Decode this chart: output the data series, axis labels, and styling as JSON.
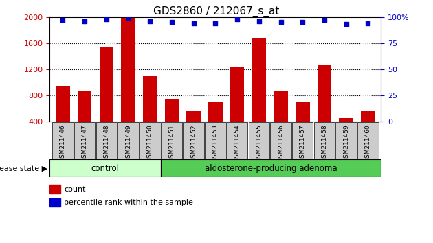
{
  "title": "GDS2860 / 212067_s_at",
  "samples": [
    "GSM211446",
    "GSM211447",
    "GSM211448",
    "GSM211449",
    "GSM211450",
    "GSM211451",
    "GSM211452",
    "GSM211453",
    "GSM211454",
    "GSM211455",
    "GSM211456",
    "GSM211457",
    "GSM211458",
    "GSM211459",
    "GSM211460"
  ],
  "counts": [
    950,
    870,
    1530,
    1990,
    1090,
    750,
    560,
    700,
    1230,
    1680,
    870,
    710,
    1270,
    450,
    560
  ],
  "percentiles": [
    97,
    96,
    98,
    99,
    96,
    95,
    94,
    94,
    98,
    96,
    95,
    95,
    97,
    93,
    94
  ],
  "control_count": 5,
  "bar_color": "#cc0000",
  "dot_color": "#0000cc",
  "ylim_left": [
    400,
    2000
  ],
  "ylim_right": [
    0,
    100
  ],
  "yticks_left": [
    400,
    800,
    1200,
    1600,
    2000
  ],
  "yticks_right": [
    0,
    25,
    50,
    75,
    100
  ],
  "grid_values": [
    800,
    1200,
    1600
  ],
  "control_color": "#ccffcc",
  "adenoma_color": "#55cc55",
  "tick_bg_color": "#cccccc",
  "ylabel_left_color": "#cc0000",
  "ylabel_right_color": "#0000cc",
  "disease_state_label": "disease state",
  "control_label": "control",
  "adenoma_label": "aldosterone-producing adenoma",
  "legend_count_label": "count",
  "legend_percentile_label": "percentile rank within the sample"
}
